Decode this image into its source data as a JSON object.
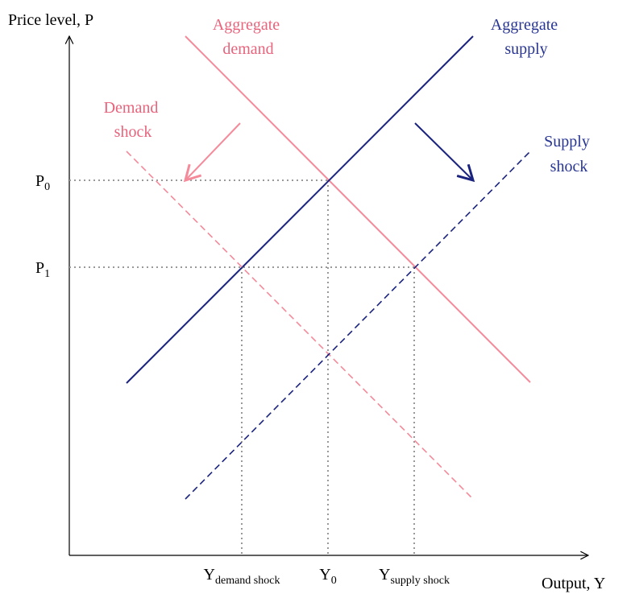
{
  "axes": {
    "y_label": "Price level, P",
    "x_label": "Output, Y"
  },
  "curves": {
    "aggregate_demand": {
      "lines": [
        "Aggregate",
        "demand"
      ]
    },
    "aggregate_supply": {
      "lines": [
        "Aggregate",
        "supply"
      ]
    },
    "demand_shock": {
      "lines": [
        "Demand",
        "shock"
      ]
    },
    "supply_shock": {
      "lines": [
        "Supply",
        "shock"
      ]
    }
  },
  "price_levels": [
    {
      "base": "P",
      "sub": "0"
    },
    {
      "base": "P",
      "sub": "1"
    }
  ],
  "outputs": [
    {
      "base": "Y",
      "sub": "demand shock"
    },
    {
      "base": "Y",
      "sub": "0"
    },
    {
      "base": "Y",
      "sub": "supply shock"
    }
  ]
}
